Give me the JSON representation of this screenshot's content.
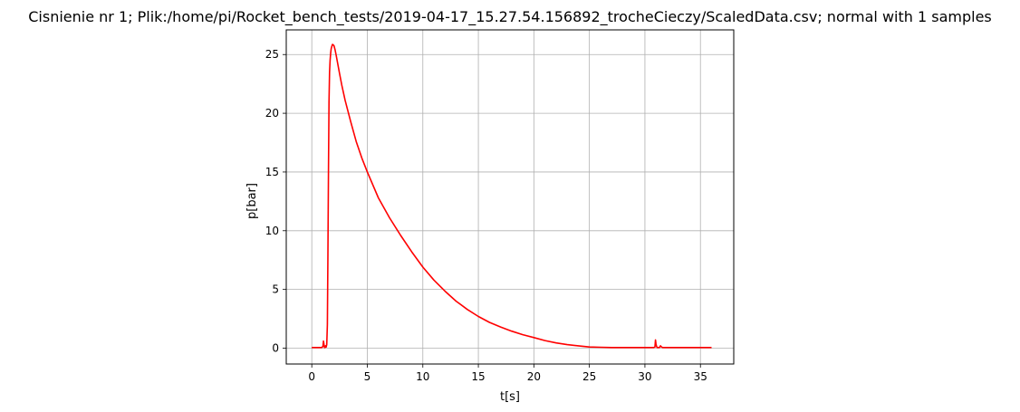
{
  "chart_data": {
    "type": "line",
    "title": "Cisnienie nr 1; Plik:/home/pi/Rocket_bench_tests/2019-04-17_15.27.54.156892_trocheCieczy/ScaledData.csv; normal with 1 samples",
    "xlabel": "t[s]",
    "ylabel": "p[bar]",
    "xlim": [
      -2.3,
      38.0
    ],
    "ylim": [
      -1.35,
      27.1
    ],
    "xticks": [
      0,
      5,
      10,
      15,
      20,
      25,
      30,
      35
    ],
    "yticks": [
      0,
      5,
      10,
      15,
      20,
      25
    ],
    "grid": true,
    "legend": "none",
    "series": [
      {
        "color": "#ff0000",
        "x": [
          0,
          0.5,
          0.9,
          1.0,
          1.05,
          1.1,
          1.15,
          1.2,
          1.25,
          1.3,
          1.35,
          1.4,
          1.45,
          1.5,
          1.55,
          1.6,
          1.65,
          1.7,
          1.75,
          1.8,
          1.85,
          1.9,
          1.95,
          2.0,
          2.1,
          2.2,
          2.3,
          2.4,
          2.5,
          2.7,
          3.0,
          3.5,
          4.0,
          4.5,
          5.0,
          6.0,
          7.0,
          8.0,
          9.0,
          10.0,
          11.0,
          12.0,
          13.0,
          14.0,
          15.0,
          16.0,
          17.0,
          18.0,
          19.0,
          20.0,
          21.0,
          22.0,
          23.0,
          24.0,
          25.0,
          26.0,
          27.0,
          28.0,
          29.0,
          30.0,
          30.8,
          30.9,
          30.95,
          31.0,
          31.05,
          31.1,
          31.3,
          31.4,
          31.5,
          31.6,
          32.0,
          33.0,
          34.0,
          35.0,
          36.0
        ],
        "y": [
          0.05,
          0.05,
          0.05,
          0.15,
          0.6,
          0.3,
          0.05,
          0.05,
          0.2,
          0.1,
          0.3,
          2.0,
          8.0,
          15.0,
          21.0,
          23.5,
          24.5,
          25.1,
          25.5,
          25.7,
          25.85,
          25.85,
          25.8,
          25.75,
          25.4,
          24.9,
          24.4,
          23.9,
          23.4,
          22.4,
          21.1,
          19.3,
          17.6,
          16.2,
          15.0,
          12.8,
          11.1,
          9.6,
          8.2,
          6.9,
          5.8,
          4.85,
          4.0,
          3.3,
          2.7,
          2.2,
          1.8,
          1.45,
          1.15,
          0.9,
          0.65,
          0.45,
          0.3,
          0.2,
          0.1,
          0.08,
          0.05,
          0.05,
          0.05,
          0.05,
          0.05,
          0.1,
          0.7,
          0.35,
          0.15,
          0.05,
          0.05,
          0.2,
          0.1,
          0.05,
          0.05,
          0.05,
          0.05,
          0.05,
          0.05
        ]
      }
    ]
  }
}
